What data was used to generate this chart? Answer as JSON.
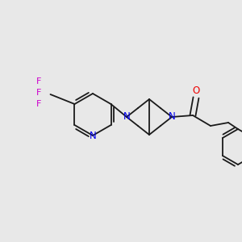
{
  "background_color": "#e8e8e8",
  "bond_color": "#1a1a1a",
  "n_color": "#0000ee",
  "o_color": "#ee0000",
  "f_color": "#cc00cc",
  "bond_width": 1.3,
  "figsize": [
    3.0,
    3.0
  ],
  "dpi": 100,
  "xlim": [
    0,
    300
  ],
  "ylim": [
    0,
    300
  ]
}
